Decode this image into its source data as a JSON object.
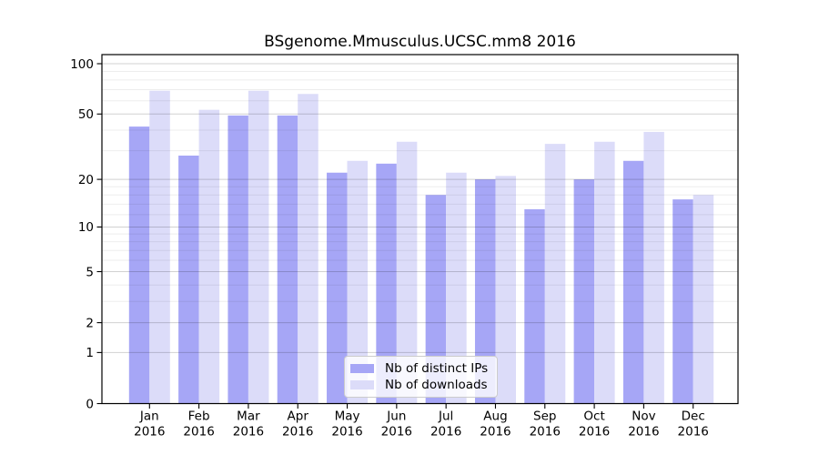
{
  "chart_data": {
    "type": "bar",
    "title": "BSgenome.Mmusculus.UCSC.mm8 2016",
    "categories": [
      "Jan",
      "Feb",
      "Mar",
      "Apr",
      "May",
      "Jun",
      "Jul",
      "Aug",
      "Sep",
      "Oct",
      "Nov",
      "Dec"
    ],
    "year": "2016",
    "series": [
      {
        "name": "Nb of distinct IPs",
        "color": "#a6a6f6",
        "values": [
          42,
          28,
          49,
          49,
          22,
          25,
          16,
          20,
          13,
          20,
          26,
          15
        ]
      },
      {
        "name": "Nb of downloads",
        "color": "#dcdcf9",
        "values": [
          69,
          53,
          69,
          66,
          26,
          34,
          22,
          21,
          33,
          34,
          39,
          16
        ]
      }
    ],
    "y_axis": {
      "scale": "log1p",
      "ticks": [
        0,
        1,
        2,
        5,
        10,
        20,
        50,
        100
      ],
      "minor_gridlines": [
        3,
        4,
        6,
        7,
        8,
        9,
        12,
        14,
        16,
        18,
        30,
        40,
        60,
        70,
        80,
        90
      ],
      "ylim": [
        0,
        105
      ]
    },
    "legend": {
      "position": "lower center",
      "entries": [
        "Nb of distinct IPs",
        "Nb of downloads"
      ]
    },
    "grid": true,
    "colors": {
      "frame": "#000000",
      "major_grid": "rgba(0,0,0,0.18)",
      "minor_grid": "rgba(0,0,0,0.07)"
    }
  }
}
